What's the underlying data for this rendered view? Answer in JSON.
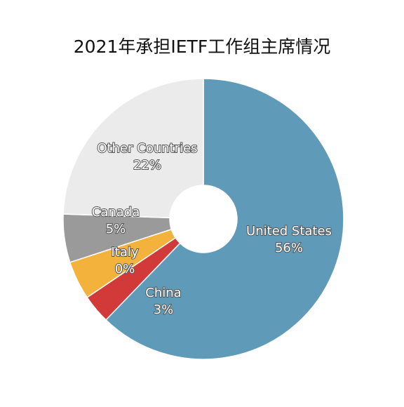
{
  "chart_data": {
    "type": "pie",
    "title": "2021年承担IETF工作组主席情况",
    "categories": [
      "United States",
      "China",
      null,
      "Italy",
      "Canada",
      "Other Countries"
    ],
    "values": [
      56,
      3,
      4,
      0,
      5,
      22
    ],
    "value_labels": [
      "56%",
      "3%",
      null,
      "0%",
      "5%",
      "22%"
    ],
    "colors": [
      "#5f9bb8",
      "#d23a3a",
      "#f3b23c",
      "#8c8c8c",
      "#9a9a9a",
      "#ebebeb"
    ],
    "donut": true
  }
}
